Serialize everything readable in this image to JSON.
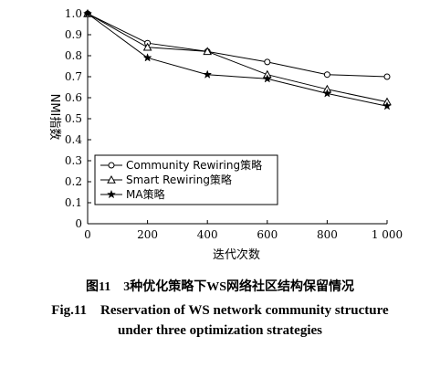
{
  "chart_data": {
    "type": "line",
    "xlabel": "迭代次数",
    "ylabel": "NMI指数",
    "xlim": [
      0,
      1000
    ],
    "ylim": [
      0,
      1.0
    ],
    "x_ticks": [
      0,
      200,
      400,
      600,
      800,
      1000
    ],
    "x_tick_labels": [
      "0",
      "200",
      "400",
      "600",
      "800",
      "1 000"
    ],
    "y_ticks": [
      0,
      0.1,
      0.2,
      0.3,
      0.4,
      0.5,
      0.6,
      0.7,
      0.8,
      0.9,
      1.0
    ],
    "y_tick_labels": [
      "0",
      "0.1",
      "0.2",
      "0.3",
      "0.4",
      "0.5",
      "0.6",
      "0.7",
      "0.8",
      "0.9",
      "1.0"
    ],
    "grid": false,
    "legend_position": "lower-left",
    "x": [
      0,
      200,
      400,
      600,
      800,
      1000
    ],
    "series": [
      {
        "name": "Community Rewiring策略",
        "marker": "circle",
        "values": [
          1.0,
          0.86,
          0.82,
          0.77,
          0.71,
          0.7
        ]
      },
      {
        "name": "Smart Rewiring策略",
        "marker": "triangle",
        "values": [
          1.0,
          0.84,
          0.82,
          0.71,
          0.64,
          0.58
        ]
      },
      {
        "name": "MA策略",
        "marker": "star",
        "values": [
          1.0,
          0.79,
          0.71,
          0.69,
          0.62,
          0.56
        ]
      }
    ]
  },
  "caption": {
    "zh": "图11　3种优化策略下WS网络社区结构保留情况",
    "en_line1": "Fig.11　Reservation of WS network community structure",
    "en_line2": "under three optimization strategies"
  }
}
